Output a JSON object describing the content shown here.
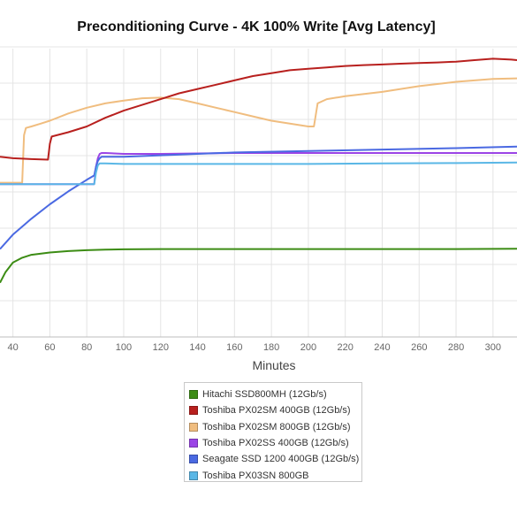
{
  "chart_data": {
    "type": "line",
    "title": "Preconditioning Curve - 4K 100% Write [Avg Latency]",
    "xlabel": "Minutes",
    "ylabel": "",
    "xlim": [
      33,
      313
    ],
    "ylim": [
      0,
      10
    ],
    "x_ticks": [
      40,
      60,
      80,
      100,
      120,
      140,
      160,
      180,
      200,
      220,
      240,
      260,
      280,
      300
    ],
    "grid": true,
    "legend_position": "bottom",
    "series": [
      {
        "name": "Hitachi SSD800MH (12Gb/s)",
        "color": "#3c8c14",
        "x": [
          33,
          36,
          40,
          45,
          50,
          60,
          70,
          80,
          90,
          100,
          120,
          160,
          200,
          240,
          280,
          313
        ],
        "y": [
          1.88,
          2.25,
          2.58,
          2.75,
          2.85,
          2.93,
          2.98,
          3.01,
          3.03,
          3.04,
          3.05,
          3.05,
          3.05,
          3.05,
          3.05,
          3.06
        ]
      },
      {
        "name": "Toshiba PX02SM 400GB (12Gb/s)",
        "color": "#b8201e",
        "x": [
          33,
          40,
          50,
          59,
          60,
          61,
          70,
          80,
          90,
          100,
          110,
          120,
          130,
          140,
          150,
          160,
          170,
          180,
          190,
          200,
          210,
          220,
          230,
          240,
          250,
          260,
          270,
          280,
          290,
          300,
          310,
          313
        ],
        "y": [
          6.25,
          6.2,
          6.17,
          6.15,
          6.7,
          6.95,
          7.1,
          7.3,
          7.6,
          7.85,
          8.05,
          8.25,
          8.45,
          8.6,
          8.75,
          8.9,
          9.05,
          9.15,
          9.25,
          9.3,
          9.35,
          9.4,
          9.43,
          9.45,
          9.48,
          9.5,
          9.52,
          9.55,
          9.6,
          9.65,
          9.62,
          9.6
        ]
      },
      {
        "name": "Toshiba PX02SM 800GB (12Gb/s)",
        "color": "#f0bd7f",
        "x": [
          33,
          45,
          46,
          47,
          50,
          55,
          60,
          70,
          80,
          90,
          100,
          110,
          120,
          130,
          140,
          150,
          160,
          170,
          180,
          190,
          200,
          203,
          204,
          205,
          210,
          220,
          240,
          260,
          280,
          300,
          313
        ],
        "y": [
          5.35,
          5.35,
          7.0,
          7.25,
          7.3,
          7.4,
          7.5,
          7.75,
          7.95,
          8.1,
          8.2,
          8.28,
          8.3,
          8.25,
          8.1,
          7.95,
          7.8,
          7.65,
          7.5,
          7.4,
          7.3,
          7.3,
          7.7,
          8.1,
          8.25,
          8.35,
          8.5,
          8.7,
          8.85,
          8.95,
          8.97
        ]
      },
      {
        "name": "Toshiba PX02SS 400GB (12Gb/s)",
        "color": "#9b44e6",
        "x": [
          33,
          60,
          84,
          85,
          86,
          87,
          88,
          90,
          100,
          120,
          160,
          200,
          240,
          280,
          313
        ],
        "y": [
          5.3,
          5.3,
          5.3,
          5.9,
          6.2,
          6.35,
          6.38,
          6.38,
          6.35,
          6.35,
          6.38,
          6.38,
          6.38,
          6.38,
          6.38
        ]
      },
      {
        "name": "Seagate SSD 1200 400GB (12Gb/s)",
        "color": "#4a69e2",
        "x": [
          33,
          40,
          50,
          60,
          70,
          80,
          84,
          85,
          86,
          87,
          88,
          90,
          100,
          120,
          160,
          200,
          240,
          280,
          313
        ],
        "y": [
          3.05,
          3.55,
          4.1,
          4.6,
          5.05,
          5.45,
          5.6,
          5.9,
          6.1,
          6.2,
          6.25,
          6.25,
          6.25,
          6.3,
          6.4,
          6.45,
          6.5,
          6.55,
          6.6
        ]
      },
      {
        "name": "Toshiba PX03SN 800GB",
        "color": "#5ab7e6",
        "x": [
          33,
          60,
          84,
          85,
          86,
          87,
          88,
          90,
          100,
          120,
          160,
          200,
          240,
          280,
          313
        ],
        "y": [
          5.3,
          5.3,
          5.3,
          5.7,
          5.95,
          6.02,
          6.02,
          6.02,
          6.0,
          6.0,
          6.0,
          6.0,
          6.02,
          6.03,
          6.05
        ]
      }
    ]
  }
}
